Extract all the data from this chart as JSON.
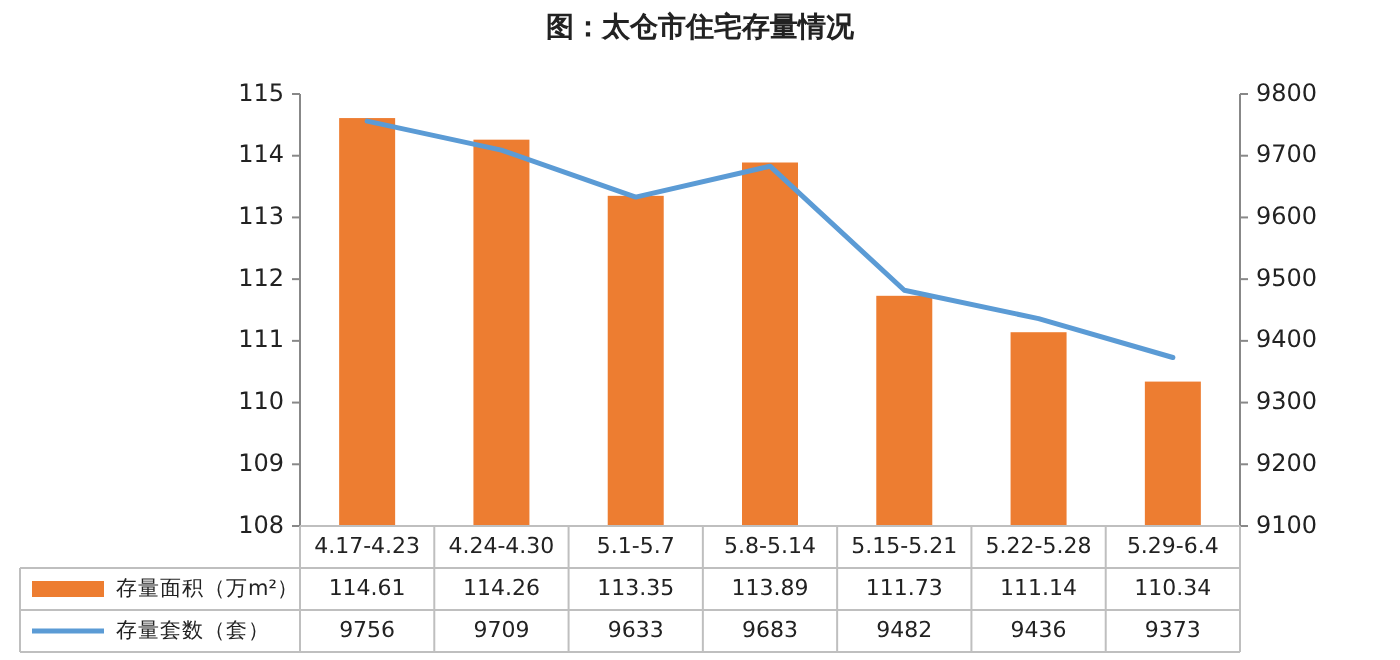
{
  "chart_data": {
    "type": "bar",
    "title": "图：太仓市住宅存量情况",
    "categories": [
      "4.17-4.23",
      "4.24-4.30",
      "5.1-5.7",
      "5.8-5.14",
      "5.15-5.21",
      "5.22-5.28",
      "5.29-6.4"
    ],
    "series": [
      {
        "name": "存量面积（万m²）",
        "color": "#ed7d31",
        "values": [
          114.61,
          114.26,
          113.35,
          113.89,
          111.73,
          111.14,
          110.34
        ]
      },
      {
        "name": "存量套数（套）",
        "type": "line",
        "axis": "y2",
        "color": "#5b9bd5",
        "values": [
          9756,
          9709,
          9633,
          9683,
          9482,
          9436,
          9373
        ]
      }
    ],
    "ylim": [
      108,
      115
    ],
    "yticks": [
      108,
      109,
      110,
      111,
      112,
      113,
      114,
      115
    ],
    "y2lim": [
      9100,
      9800
    ],
    "y2ticks": [
      9100,
      9200,
      9300,
      9400,
      9500,
      9600,
      9700,
      9800
    ],
    "data_labels": true,
    "legend": "bottom",
    "grid": false,
    "marker": "none"
  }
}
